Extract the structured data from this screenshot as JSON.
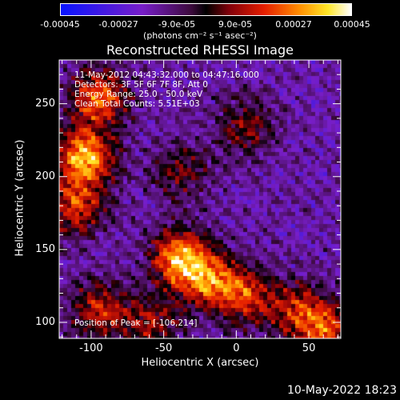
{
  "chart_data": {
    "type": "heatmap",
    "title": "Reconstructed RHESSI Image",
    "xlabel": "Heliocentric X (arcsec)",
    "ylabel": "Heliocentric Y (arcsec)",
    "xlim": [
      -122,
      72
    ],
    "ylim": [
      89,
      280
    ],
    "xticks": [
      -100,
      -50,
      0,
      50
    ],
    "yticks": [
      100,
      150,
      200,
      250
    ],
    "colorbar": {
      "ticks": [
        "-0.00045",
        "-0.00027",
        "-9.0e-05",
        "9.0e-05",
        "0.00027",
        "0.00045"
      ],
      "range": [
        -0.00045,
        0.00045
      ],
      "units": "(photons cm⁻² s⁻¹ asec⁻²)"
    },
    "annotations": [
      "11-May-2012 04:43:32.000 to 04:47:16.000",
      "Detectors: 3F 5F 6F 7F 8F, Att 0",
      "Energy Range: 25.0 - 50.0 keV",
      "Clean     Total Counts: 5.51E+03"
    ],
    "peak_text": "Position of Peak = [-106,214]",
    "peak": [
      -106,
      214
    ],
    "sources": [
      {
        "x": -106,
        "y": 214,
        "intensity": 1.0
      },
      {
        "x": -96,
        "y": 255,
        "intensity": 0.8
      },
      {
        "x": -112,
        "y": 180,
        "intensity": 0.65
      },
      {
        "x": -40,
        "y": 145,
        "intensity": 0.95
      },
      {
        "x": -20,
        "y": 130,
        "intensity": 0.7
      },
      {
        "x": 5,
        "y": 120,
        "intensity": 0.65
      },
      {
        "x": -95,
        "y": 110,
        "intensity": 0.6
      },
      {
        "x": -60,
        "y": 100,
        "intensity": 0.5
      },
      {
        "x": 40,
        "y": 110,
        "intensity": 0.55
      },
      {
        "x": 60,
        "y": 96,
        "intensity": 0.7
      },
      {
        "x": 5,
        "y": 235,
        "intensity": 0.45
      },
      {
        "x": -40,
        "y": 205,
        "intensity": 0.4
      }
    ]
  },
  "footer": {
    "timestamp": "10-May-2022 18:23"
  }
}
